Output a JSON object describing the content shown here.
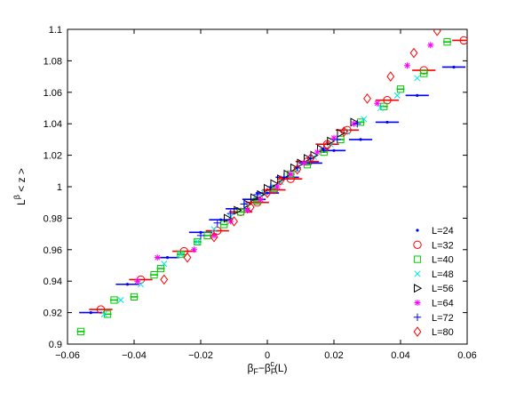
{
  "chart_data": {
    "type": "scatter",
    "title": "",
    "xlabel": {
      "main": "β",
      "sub1": "F",
      "mid": "−β",
      "sub2": "F",
      "sup2": "c",
      "tail": "(L)"
    },
    "ylabel": {
      "main": "L",
      "sup": "β",
      "tail": " < z >"
    },
    "xlim": [
      -0.06,
      0.06
    ],
    "ylim": [
      0.9,
      1.1
    ],
    "xticks": [
      -0.06,
      -0.04,
      -0.02,
      0,
      0.02,
      0.04,
      0.06
    ],
    "xtick_labels": [
      "−0.06",
      "−0.04",
      "−0.02",
      "0",
      "0.02",
      "0.04",
      "0.06"
    ],
    "yticks": [
      0.9,
      0.92,
      0.94,
      0.96,
      0.98,
      1.0,
      1.02,
      1.04,
      1.06,
      1.08,
      1.1
    ],
    "ytick_labels": [
      "0.9",
      "0.92",
      "0.94",
      "0.96",
      "0.98",
      "1",
      "1.02",
      "1.04",
      "1.06",
      "1.08",
      "1.1"
    ],
    "grid": false,
    "legend_position": "bottom-right",
    "series": [
      {
        "name": "L=24",
        "marker": "dot",
        "color": "#0000ff",
        "err": 0.0035,
        "x": [
          -0.053,
          -0.042,
          -0.03,
          -0.02,
          -0.014,
          -0.009,
          -0.004,
          0.0,
          0.006,
          0.013,
          0.02,
          0.028,
          0.036,
          0.045,
          0.056
        ],
        "y": [
          0.92,
          0.938,
          0.955,
          0.971,
          0.979,
          0.986,
          0.992,
          0.996,
          1.006,
          1.015,
          1.023,
          1.03,
          1.041,
          1.058,
          1.076
        ]
      },
      {
        "name": "L=32",
        "marker": "circle",
        "color": "#ff0000",
        "err": 0.0035,
        "x": [
          -0.05,
          -0.038,
          -0.025,
          -0.015,
          -0.008,
          -0.003,
          0.002,
          0.007,
          0.012,
          0.018,
          0.024,
          0.036,
          0.047,
          0.059
        ],
        "y": [
          0.922,
          0.941,
          0.959,
          0.972,
          0.984,
          0.99,
          0.998,
          1.005,
          1.016,
          1.027,
          1.036,
          1.055,
          1.074,
          1.093
        ]
      },
      {
        "name": "L=40",
        "marker": "square",
        "color": "#00cc00",
        "err": 0.0012,
        "x": [
          -0.056,
          -0.048,
          -0.046,
          -0.04,
          -0.034,
          -0.032,
          -0.026,
          -0.021,
          -0.018,
          -0.013,
          -0.008,
          -0.003,
          0.002,
          0.007,
          0.012,
          0.017,
          0.022,
          0.028,
          0.035,
          0.04,
          0.047,
          0.054
        ],
        "y": [
          0.908,
          0.919,
          0.928,
          0.93,
          0.944,
          0.948,
          0.957,
          0.965,
          0.969,
          0.976,
          0.984,
          0.991,
          0.999,
          1.008,
          1.014,
          1.022,
          1.03,
          1.041,
          1.051,
          1.062,
          1.072,
          1.092
        ]
      },
      {
        "name": "L=48",
        "marker": "x",
        "color": "#00e5e5",
        "err": 0.0,
        "x": [
          -0.049,
          -0.044,
          -0.038,
          -0.031,
          -0.026,
          -0.021,
          -0.016,
          -0.011,
          -0.006,
          -0.001,
          0.004,
          0.009,
          0.014,
          0.019,
          0.024,
          0.029,
          0.034,
          0.039,
          0.045
        ],
        "y": [
          0.919,
          0.928,
          0.938,
          0.951,
          0.957,
          0.965,
          0.973,
          0.981,
          0.988,
          0.996,
          1.003,
          1.011,
          1.019,
          1.027,
          1.035,
          1.043,
          1.05,
          1.058,
          1.069
        ]
      },
      {
        "name": "L=56",
        "marker": "triangle",
        "color": "#000000",
        "err": 0.0,
        "x": [
          -0.012,
          -0.009,
          -0.006,
          -0.004,
          -0.002,
          0.0,
          0.002,
          0.004,
          0.006,
          0.008,
          0.01,
          0.012,
          0.014,
          0.016,
          0.019,
          0.022,
          0.026
        ],
        "y": [
          0.98,
          0.985,
          0.989,
          0.993,
          0.995,
          0.999,
          1.002,
          1.005,
          1.008,
          1.012,
          1.015,
          1.018,
          1.02,
          1.024,
          1.029,
          1.034,
          1.041
        ]
      },
      {
        "name": "L=64",
        "marker": "star",
        "color": "#ff00ff",
        "err": 0.0,
        "x": [
          -0.039,
          -0.033,
          -0.022,
          -0.016,
          -0.011,
          -0.006,
          -0.002,
          0.003,
          0.007,
          0.011,
          0.015,
          0.02,
          0.026,
          0.033,
          0.042,
          0.049
        ],
        "y": [
          0.94,
          0.955,
          0.96,
          0.969,
          0.978,
          0.985,
          0.992,
          1.0,
          1.008,
          1.015,
          1.022,
          1.031,
          1.04,
          1.053,
          1.077,
          1.09
        ]
      },
      {
        "name": "L=72",
        "marker": "plus",
        "color": "#0000ff",
        "err": 0.0,
        "x": [
          -0.02,
          -0.015,
          -0.011,
          -0.007,
          -0.003,
          0.001,
          0.005,
          0.009,
          0.013,
          0.017,
          0.021,
          0.027
        ],
        "y": [
          0.969,
          0.977,
          0.983,
          0.989,
          0.995,
          1.0,
          1.006,
          1.012,
          1.018,
          1.024,
          1.03,
          1.04
        ]
      },
      {
        "name": "L=80",
        "marker": "diamond",
        "color": "#ff0000",
        "err": 0.0,
        "x": [
          -0.031,
          -0.024,
          -0.016,
          -0.01,
          -0.005,
          0.0,
          0.004,
          0.009,
          0.013,
          0.018,
          0.023,
          0.03,
          0.037,
          0.044,
          0.051
        ],
        "y": [
          0.941,
          0.955,
          0.968,
          0.978,
          0.987,
          0.996,
          1.004,
          1.011,
          1.018,
          1.026,
          1.035,
          1.056,
          1.07,
          1.085,
          1.099
        ]
      }
    ]
  }
}
